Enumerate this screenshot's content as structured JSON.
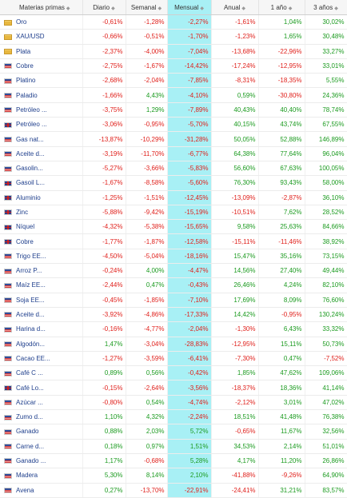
{
  "headers": {
    "name": "Materias primas",
    "daily": "Diario",
    "weekly": "Semanal",
    "monthly": "Mensual",
    "annual": "Anual",
    "one_year": "1 año",
    "three_years": "3 años"
  },
  "rows": [
    {
      "flag": "folder",
      "name": "Oro",
      "daily": "-0,61%",
      "weekly": "-1,28%",
      "monthly": "-2,27%",
      "annual": "-1,61%",
      "one_year": "1,04%",
      "three_years": "30,02%"
    },
    {
      "flag": "folder",
      "name": "XAU/USD",
      "daily": "-0,66%",
      "weekly": "-0,51%",
      "monthly": "-1,70%",
      "annual": "-1,23%",
      "one_year": "1,65%",
      "three_years": "30,48%"
    },
    {
      "flag": "folder",
      "name": "Plata",
      "daily": "-2,37%",
      "weekly": "-4,00%",
      "monthly": "-7,04%",
      "annual": "-13,68%",
      "one_year": "-22,96%",
      "three_years": "33,27%"
    },
    {
      "flag": "us",
      "name": "Cobre",
      "daily": "-2,75%",
      "weekly": "-1,67%",
      "monthly": "-14,42%",
      "annual": "-17,24%",
      "one_year": "-12,95%",
      "three_years": "33,01%"
    },
    {
      "flag": "us",
      "name": "Platino",
      "daily": "-2,68%",
      "weekly": "-2,04%",
      "monthly": "-7,85%",
      "annual": "-8,31%",
      "one_year": "-18,35%",
      "three_years": "5,55%"
    },
    {
      "flag": "us",
      "name": "Paladio",
      "daily": "-1,66%",
      "weekly": "4,43%",
      "monthly": "-4,10%",
      "annual": "0,59%",
      "one_year": "-30,80%",
      "three_years": "24,36%"
    },
    {
      "flag": "us",
      "name": "Petróleo ...",
      "daily": "-3,75%",
      "weekly": "1,29%",
      "monthly": "-7,89%",
      "annual": "40,43%",
      "one_year": "40,40%",
      "three_years": "78,74%"
    },
    {
      "flag": "uk",
      "name": "Petróleo ...",
      "daily": "-3,06%",
      "weekly": "-0,95%",
      "monthly": "-5,70%",
      "annual": "40,15%",
      "one_year": "43,74%",
      "three_years": "67,55%"
    },
    {
      "flag": "us",
      "name": "Gas nat...",
      "daily": "-13,87%",
      "weekly": "-10,29%",
      "monthly": "-31,28%",
      "annual": "50,05%",
      "one_year": "52,88%",
      "three_years": "146,89%"
    },
    {
      "flag": "us",
      "name": "Aceite d...",
      "daily": "-3,19%",
      "weekly": "-11,70%",
      "monthly": "-6,77%",
      "annual": "64,38%",
      "one_year": "77,64%",
      "three_years": "96,04%"
    },
    {
      "flag": "us",
      "name": "Gasolin...",
      "daily": "-5,27%",
      "weekly": "-3,66%",
      "monthly": "-5,83%",
      "annual": "56,60%",
      "one_year": "67,63%",
      "three_years": "100,05%"
    },
    {
      "flag": "uk",
      "name": "Gasoil L...",
      "daily": "-1,67%",
      "weekly": "-8,58%",
      "monthly": "-5,60%",
      "annual": "76,30%",
      "one_year": "93,43%",
      "three_years": "58,00%"
    },
    {
      "flag": "uk",
      "name": "Aluminio",
      "daily": "-1,25%",
      "weekly": "-1,51%",
      "monthly": "-12,45%",
      "annual": "-13,09%",
      "one_year": "-2,87%",
      "three_years": "36,10%"
    },
    {
      "flag": "uk",
      "name": "Zinc",
      "daily": "-5,88%",
      "weekly": "-9,42%",
      "monthly": "-15,19%",
      "annual": "-10,51%",
      "one_year": "7,62%",
      "three_years": "28,52%"
    },
    {
      "flag": "uk",
      "name": "Níquel",
      "daily": "-4,32%",
      "weekly": "-5,38%",
      "monthly": "-15,65%",
      "annual": "9,58%",
      "one_year": "25,63%",
      "three_years": "84,66%"
    },
    {
      "flag": "uk",
      "name": "Cobre",
      "daily": "-1,77%",
      "weekly": "-1,87%",
      "monthly": "-12,58%",
      "annual": "-15,11%",
      "one_year": "-11,46%",
      "three_years": "38,92%"
    },
    {
      "flag": "us",
      "name": "Trigo EE...",
      "daily": "-4,50%",
      "weekly": "-5,04%",
      "monthly": "-18,16%",
      "annual": "15,47%",
      "one_year": "35,16%",
      "three_years": "73,15%"
    },
    {
      "flag": "us",
      "name": "Arroz P...",
      "daily": "-0,24%",
      "weekly": "4,00%",
      "monthly": "-4,47%",
      "annual": "14,56%",
      "one_year": "27,40%",
      "three_years": "49,44%"
    },
    {
      "flag": "us",
      "name": "Maíz EE...",
      "daily": "-2,44%",
      "weekly": "0,47%",
      "monthly": "-0,43%",
      "annual": "26,46%",
      "one_year": "4,24%",
      "three_years": "82,10%"
    },
    {
      "flag": "us",
      "name": "Soja EE...",
      "daily": "-0,45%",
      "weekly": "-1,85%",
      "monthly": "-7,10%",
      "annual": "17,69%",
      "one_year": "8,09%",
      "three_years": "76,60%"
    },
    {
      "flag": "us",
      "name": "Aceite d...",
      "daily": "-3,92%",
      "weekly": "-4,86%",
      "monthly": "-17,33%",
      "annual": "14,42%",
      "one_year": "-0,95%",
      "three_years": "130,24%"
    },
    {
      "flag": "us",
      "name": "Harina d...",
      "daily": "-0,16%",
      "weekly": "-4,77%",
      "monthly": "-2,04%",
      "annual": "-1,30%",
      "one_year": "6,43%",
      "three_years": "33,32%"
    },
    {
      "flag": "us",
      "name": "Algodón...",
      "daily": "1,47%",
      "weekly": "-3,04%",
      "monthly": "-28,83%",
      "annual": "-12,95%",
      "one_year": "15,11%",
      "three_years": "50,73%"
    },
    {
      "flag": "us",
      "name": "Cacao EE...",
      "daily": "-1,27%",
      "weekly": "-3,59%",
      "monthly": "-6,41%",
      "annual": "-7,30%",
      "one_year": "0,47%",
      "three_years": "-7,52%"
    },
    {
      "flag": "us",
      "name": "Café C ...",
      "daily": "0,89%",
      "weekly": "0,56%",
      "monthly": "-0,42%",
      "annual": "1,85%",
      "one_year": "47,62%",
      "three_years": "109,06%"
    },
    {
      "flag": "uk",
      "name": "Café Lo...",
      "daily": "-0,15%",
      "weekly": "-2,64%",
      "monthly": "-3,56%",
      "annual": "-18,37%",
      "one_year": "18,36%",
      "three_years": "41,14%"
    },
    {
      "flag": "us",
      "name": "Azúcar ...",
      "daily": "-0,80%",
      "weekly": "0,54%",
      "monthly": "-4,74%",
      "annual": "-2,12%",
      "one_year": "3,01%",
      "three_years": "47,02%"
    },
    {
      "flag": "us",
      "name": "Zumo d...",
      "daily": "1,10%",
      "weekly": "4,32%",
      "monthly": "-2,24%",
      "annual": "18,51%",
      "one_year": "41,48%",
      "three_years": "76,38%"
    },
    {
      "flag": "us",
      "name": "Ganado",
      "daily": "0,88%",
      "weekly": "2,03%",
      "monthly": "5,72%",
      "annual": "-0,65%",
      "one_year": "11,67%",
      "three_years": "32,56%"
    },
    {
      "flag": "us",
      "name": "Carne d...",
      "daily": "0,18%",
      "weekly": "0,97%",
      "monthly": "1,51%",
      "annual": "34,53%",
      "one_year": "2,14%",
      "three_years": "51,01%"
    },
    {
      "flag": "us",
      "name": "Ganado ...",
      "daily": "1,17%",
      "weekly": "-0,68%",
      "monthly": "5,28%",
      "annual": "4,17%",
      "one_year": "11,20%",
      "three_years": "26,86%"
    },
    {
      "flag": "us",
      "name": "Madera",
      "daily": "5,30%",
      "weekly": "8,14%",
      "monthly": "2,10%",
      "annual": "-41,88%",
      "one_year": "-9,26%",
      "three_years": "64,90%"
    },
    {
      "flag": "us",
      "name": "Avena",
      "daily": "0,27%",
      "weekly": "-13,70%",
      "monthly": "-22,91%",
      "annual": "-24,41%",
      "one_year": "31,21%",
      "three_years": "83,57%"
    }
  ],
  "colors": {
    "negative": "#e0211c",
    "positive": "#1c9b20",
    "highlight_column": "#a8f0f5",
    "name_text": "#1f3f8c"
  }
}
